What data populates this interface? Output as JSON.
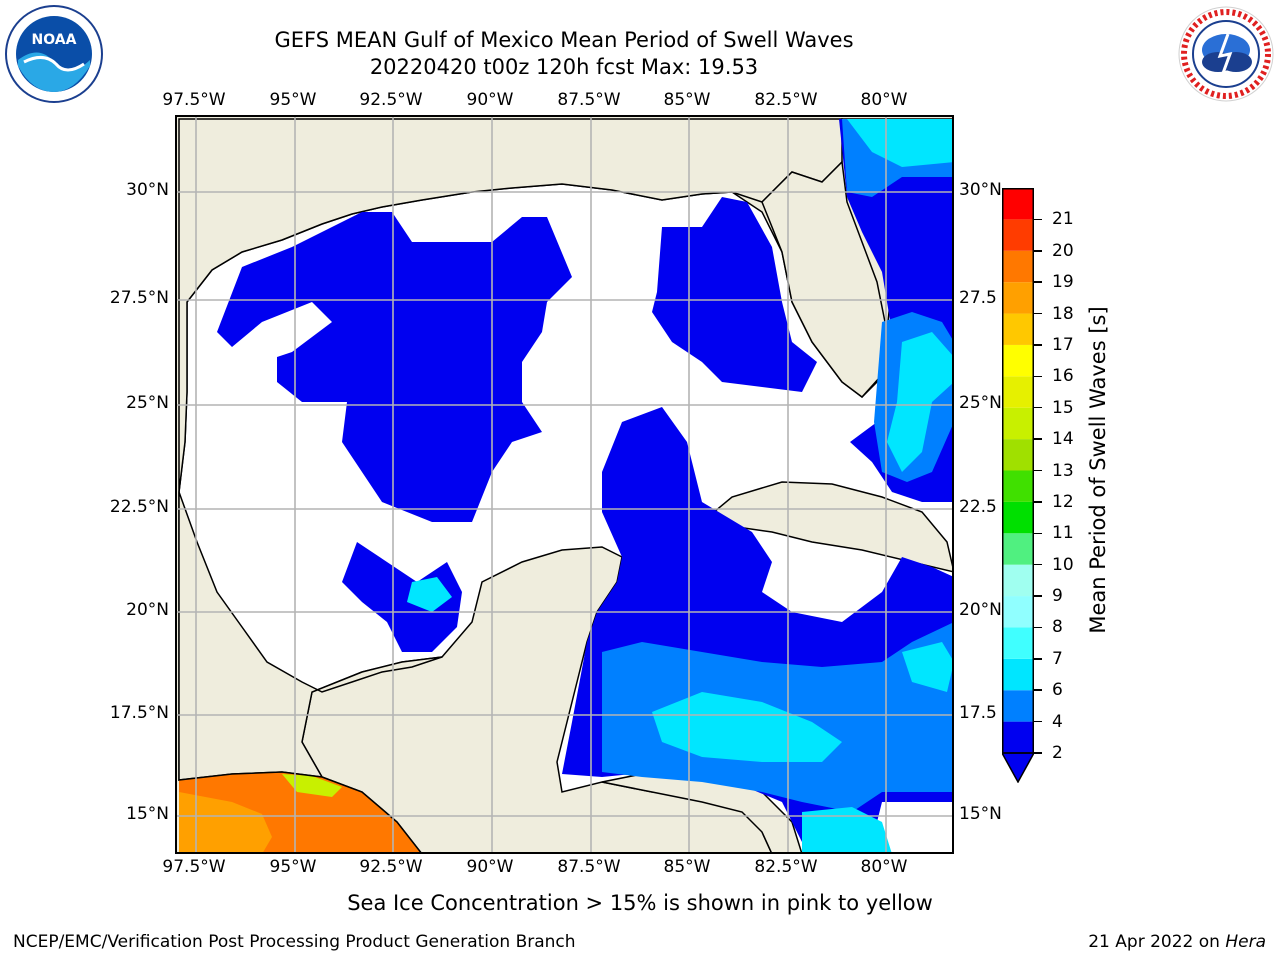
{
  "title_line1": "GEFS MEAN Gulf of Mexico Mean Period of Swell Waves",
  "title_line2": "20220420 t00z 120h fcst   Max: 19.53",
  "lon_ticks": [
    "97.5°W",
    "95°W",
    "92.5°W",
    "90°W",
    "87.5°W",
    "85°W",
    "82.5°W",
    "80°W"
  ],
  "lat_ticks": [
    "30°N",
    "27.5°N",
    "25°N",
    "22.5°N",
    "20°N",
    "17.5°N",
    "15°N"
  ],
  "lat_ticks_right": [
    "30°N",
    "27.5",
    "25°N",
    "22.5",
    "20°N",
    "17.5",
    "15°N"
  ],
  "colorbar": {
    "label": "Mean Period of Swell Waves [s]",
    "ticks": [
      "2",
      "4",
      "6",
      "7",
      "8",
      "9",
      "10",
      "11",
      "12",
      "13",
      "14",
      "15",
      "16",
      "17",
      "18",
      "19",
      "20",
      "21"
    ],
    "colors": [
      "#0000f0",
      "#0080ff",
      "#00e6ff",
      "#40ffff",
      "#90ffff",
      "#a0fff0",
      "#50f080",
      "#00e000",
      "#40e000",
      "#a0e000",
      "#c8f000",
      "#e6f000",
      "#ffff00",
      "#ffc800",
      "#ffa000",
      "#ff7800",
      "#ff3c00",
      "#ff0000"
    ],
    "extend": "min"
  },
  "sea_ice_note": "Sea Ice Concentration > 15% is shown in pink to yellow",
  "credit": "NCEP/EMC/Verification Post Processing Product Generation Branch",
  "date": "21 Apr 2022 on",
  "host": "Hera",
  "colors": {
    "land": "#efeddd",
    "water_none": "#ffffff",
    "grid": "#b4b4b4"
  },
  "logos": {
    "left": "noaa-logo",
    "right": "nws-logo"
  }
}
